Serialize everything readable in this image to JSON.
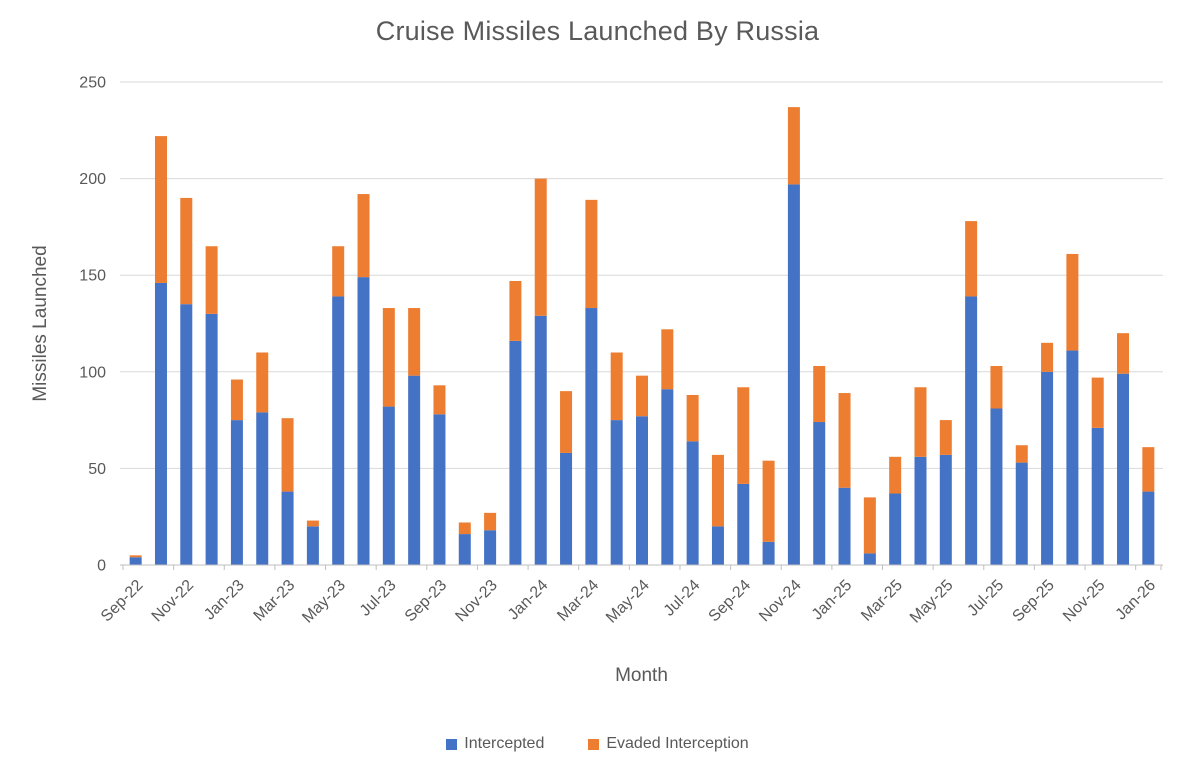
{
  "title": "Cruise Missiles Launched By Russia",
  "chart_data": {
    "type": "bar",
    "stacked": true,
    "title": "Cruise Missiles Launched By Russia",
    "xlabel": "Month",
    "ylabel": "Missiles Launched",
    "ylim": [
      0,
      250
    ],
    "yticks": [
      0,
      50,
      100,
      150,
      200,
      250
    ],
    "grid": "horizontal",
    "legend_position": "bottom",
    "label_interval": 2,
    "gridline_color": "#D9D9D9",
    "axis_line_color": "#BFBFBF",
    "axis_text_color": "#595959",
    "categories": [
      "Sep-22",
      "Oct-22",
      "Nov-22",
      "Dec-22",
      "Jan-23",
      "Feb-23",
      "Mar-23",
      "Apr-23",
      "May-23",
      "Jun-23",
      "Jul-23",
      "Aug-23",
      "Sep-23",
      "Oct-23",
      "Nov-23",
      "Dec-23",
      "Jan-24",
      "Feb-24",
      "Mar-24",
      "Apr-24",
      "May-24",
      "Jun-24",
      "Jul-24",
      "Aug-24",
      "Sep-24",
      "Oct-24",
      "Nov-24",
      "Dec-24",
      "Jan-25",
      "Feb-25",
      "Mar-25",
      "Apr-25",
      "May-25",
      "Jun-25",
      "Jul-25",
      "Aug-25",
      "Sep-25",
      "Oct-25",
      "Nov-25",
      "Dec-25",
      "Jan-26"
    ],
    "series": [
      {
        "name": "Intercepted",
        "color": "#4472C4",
        "values": [
          4,
          146,
          135,
          130,
          75,
          79,
          38,
          20,
          139,
          149,
          82,
          98,
          78,
          16,
          18,
          116,
          129,
          58,
          133,
          75,
          77,
          91,
          64,
          20,
          42,
          12,
          197,
          74,
          40,
          6,
          37,
          56,
          57,
          139,
          81,
          53,
          100,
          111,
          71,
          99,
          38
        ]
      },
      {
        "name": "Evaded Interception",
        "color": "#ED7D31",
        "values": [
          1,
          76,
          55,
          35,
          21,
          31,
          38,
          3,
          26,
          43,
          51,
          35,
          15,
          6,
          9,
          31,
          71,
          32,
          56,
          35,
          21,
          31,
          24,
          37,
          50,
          42,
          40,
          29,
          49,
          29,
          19,
          36,
          18,
          39,
          22,
          9,
          15,
          50,
          26,
          21,
          23
        ]
      }
    ]
  }
}
